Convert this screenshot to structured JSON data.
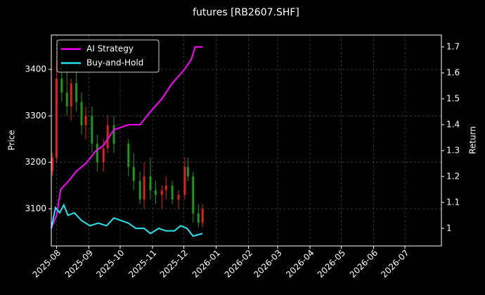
{
  "chart_data": {
    "type": "candlestick",
    "title": "futures [RB2607.SHF]",
    "ylabel": "Price",
    "y2label": "Return",
    "xlim": [
      "2025-07-27",
      "2026-08-05"
    ],
    "xticks": [
      "2025-08",
      "2025-09",
      "2025-10",
      "2025-11",
      "2025-12",
      "2026-01",
      "2026-02",
      "2026-03",
      "2026-04",
      "2026-05",
      "2026-06",
      "2026-07"
    ],
    "ylim": [
      3020,
      3474
    ],
    "yticks": [
      3100,
      3200,
      3300,
      3400
    ],
    "y2lim": [
      0.932,
      1.746
    ],
    "y2ticks": [
      1.0,
      1.1,
      1.2,
      1.3,
      1.4,
      1.5,
      1.6,
      1.7
    ],
    "grid": true,
    "legend": "upper left",
    "up_color": "#e0201a",
    "down_color": "#1a9a1a",
    "candles": {
      "x": [
        "2025-07-28",
        "2025-08-01",
        "2025-08-06",
        "2025-08-11",
        "2025-08-15",
        "2025-08-20",
        "2025-08-25",
        "2025-08-29",
        "2025-09-04",
        "2025-09-09",
        "2025-09-15",
        "2025-09-19",
        "2025-09-25",
        "2025-10-09",
        "2025-10-14",
        "2025-10-20",
        "2025-10-24",
        "2025-10-30",
        "2025-11-04",
        "2025-11-10",
        "2025-11-14",
        "2025-11-20",
        "2025-11-26",
        "2025-12-02",
        "2025-12-05",
        "2025-12-10",
        "2025-12-15",
        "2025-12-19"
      ],
      "open": [
        3180,
        3210,
        3380,
        3350,
        3320,
        3370,
        3330,
        3280,
        3300,
        3240,
        3200,
        3230,
        3280,
        3240,
        3190,
        3160,
        3120,
        3170,
        3140,
        3130,
        3140,
        3150,
        3120,
        3130,
        3190,
        3170,
        3090,
        3070
      ],
      "high": [
        3220,
        3420,
        3440,
        3410,
        3380,
        3400,
        3350,
        3320,
        3320,
        3260,
        3250,
        3300,
        3300,
        3250,
        3220,
        3180,
        3200,
        3210,
        3160,
        3150,
        3170,
        3160,
        3140,
        3210,
        3210,
        3180,
        3110,
        3110
      ],
      "low": [
        3170,
        3200,
        3330,
        3300,
        3290,
        3310,
        3260,
        3250,
        3220,
        3180,
        3180,
        3220,
        3220,
        3170,
        3140,
        3110,
        3100,
        3120,
        3110,
        3100,
        3120,
        3110,
        3100,
        3120,
        3160,
        3070,
        3060,
        3060
      ],
      "close": [
        3210,
        3380,
        3350,
        3320,
        3370,
        3330,
        3280,
        3300,
        3240,
        3200,
        3230,
        3280,
        3240,
        3190,
        3160,
        3120,
        3170,
        3140,
        3130,
        3140,
        3150,
        3120,
        3130,
        3190,
        3170,
        3090,
        3070,
        3100
      ]
    },
    "series": [
      {
        "name": "AI Strategy",
        "color": "#ff00ff",
        "axis": "y2",
        "x": [
          "2025-07-27",
          "2025-08-01",
          "2025-08-05",
          "2025-08-12",
          "2025-08-20",
          "2025-08-29",
          "2025-09-08",
          "2025-09-15",
          "2025-09-25",
          "2025-10-09",
          "2025-10-20",
          "2025-10-30",
          "2025-11-10",
          "2025-11-20",
          "2025-12-01",
          "2025-12-08",
          "2025-12-12",
          "2025-12-19"
        ],
        "values": [
          1.0,
          1.05,
          1.15,
          1.18,
          1.22,
          1.25,
          1.3,
          1.32,
          1.38,
          1.4,
          1.4,
          1.45,
          1.5,
          1.56,
          1.61,
          1.65,
          1.7,
          1.7
        ]
      },
      {
        "name": "Buy-and-Hold",
        "color": "#22e5f0",
        "axis": "y2",
        "x": [
          "2025-07-27",
          "2025-07-31",
          "2025-08-04",
          "2025-08-08",
          "2025-08-12",
          "2025-08-18",
          "2025-08-25",
          "2025-09-02",
          "2025-09-10",
          "2025-09-18",
          "2025-09-25",
          "2025-10-09",
          "2025-10-16",
          "2025-10-24",
          "2025-10-30",
          "2025-11-07",
          "2025-11-14",
          "2025-11-22",
          "2025-11-28",
          "2025-12-04",
          "2025-12-10",
          "2025-12-19"
        ],
        "values": [
          1.0,
          1.08,
          1.06,
          1.09,
          1.05,
          1.06,
          1.03,
          1.01,
          1.02,
          1.01,
          1.04,
          1.02,
          1.0,
          1.0,
          0.98,
          1.0,
          0.99,
          0.99,
          1.01,
          1.0,
          0.97,
          0.98
        ]
      }
    ]
  }
}
